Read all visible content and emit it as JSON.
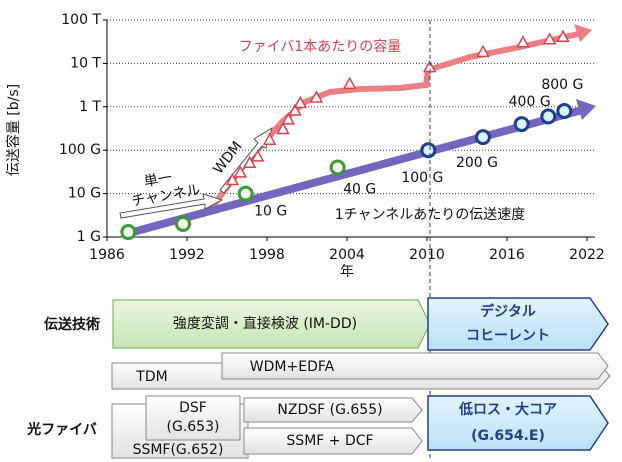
{
  "chart_data": {
    "type": "scatter",
    "y_label": "伝送容量 [b/s]",
    "x_label": "年",
    "xlim": [
      1986,
      2022
    ],
    "xticks": [
      1986,
      1992,
      1998,
      2004,
      2010,
      2016,
      2022
    ],
    "ylim": [
      1000000000,
      100000000000000
    ],
    "log_y": true,
    "yticks": [
      {
        "value": 1000000000,
        "label": "1 G"
      },
      {
        "value": 10000000000,
        "label": "10 G"
      },
      {
        "value": 100000000000,
        "label": "100 G"
      },
      {
        "value": 1000000000000,
        "label": "1 T"
      },
      {
        "value": 10000000000000,
        "label": "10 T"
      },
      {
        "value": 100000000000000,
        "label": "100 T"
      }
    ],
    "grid": true,
    "series": [
      {
        "name": "ファイバ1本あたりの容量",
        "color": "#e0404e",
        "marker": "triangle",
        "x": [
          1995.4,
          1996,
          1996.7,
          1997.3,
          1998.2,
          1999.2,
          1999.6,
          2000.1,
          2000.5,
          2001.7,
          2004.2,
          2010.2,
          2014.2,
          2017.2,
          2019.2,
          2020.2
        ],
        "values": [
          20000000000,
          30000000000,
          50000000000,
          70000000000,
          170000000000,
          300000000000,
          500000000000,
          800000000000,
          1200000000000,
          1600000000000,
          3300000000000,
          8000000000000,
          18000000000000,
          30000000000000,
          35000000000000,
          40000000000000
        ]
      },
      {
        "name": "1チャンネルあたりの伝送速度",
        "color": "#1f3f8f",
        "marker": "circle",
        "edge_colors": [
          "#3a9a3a",
          "#3a9a3a",
          "#3a9a3a",
          "#3a9a3a",
          "#1f3f8f",
          "#1f3f8f",
          "#1f3f8f",
          "#1f3f8f",
          "#1f3f8f"
        ],
        "x": [
          1987.6,
          1991.7,
          1996.4,
          2003.3,
          2010.1,
          2014.2,
          2017.1,
          2019.1,
          2020.3
        ],
        "values": [
          1300000000,
          2000000000,
          10000000000,
          40000000000,
          100000000000,
          200000000000,
          400000000000,
          600000000000,
          800000000000
        ],
        "value_labels": [
          null,
          null,
          "10 G",
          "40 G",
          "100 G",
          "200 G",
          "400 G",
          null,
          "800 G"
        ]
      }
    ],
    "annotations": [
      "WDM",
      "単一",
      "チャンネル"
    ]
  },
  "diagram": {
    "transmission": {
      "label": "伝送技術",
      "imdd": "強度変調・直接検波 (IM-DD)",
      "coherent_1": "デジタル",
      "coherent_2": "コヒーレント",
      "tdm": "TDM",
      "wdm": "WDM+EDFA"
    },
    "fiber": {
      "label": "光ファイバ",
      "dsf_1": "DSF",
      "dsf_2": "(G.653)",
      "ssmf": "SSMF(G.652)",
      "nzdsf": "NZDSF (G.655)",
      "ssmf_dcf": "SSMF + DCF",
      "lowloss_1": "低ロス・大コア",
      "lowloss_2": "(G.654.E)"
    }
  }
}
